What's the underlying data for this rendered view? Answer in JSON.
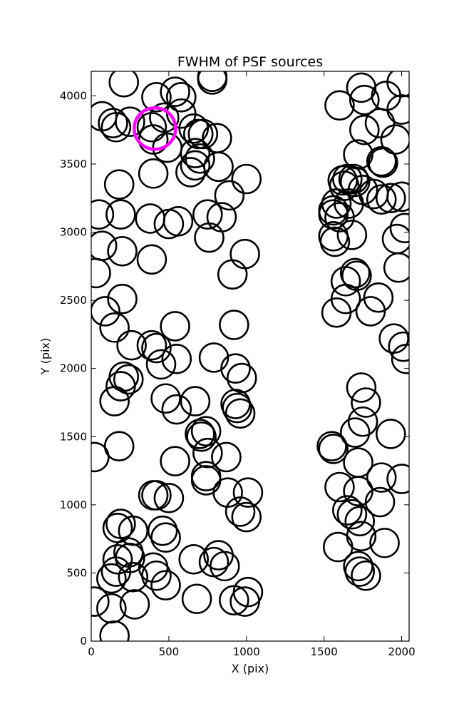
{
  "chart_data": {
    "type": "scatter",
    "title": "FWHM of PSF sources",
    "xlabel": "X (pix)",
    "ylabel": "Y (pix)",
    "xlim": [
      0,
      2048
    ],
    "ylim": [
      0,
      4180
    ],
    "x_ticks": [
      0,
      500,
      1000,
      1500,
      2000
    ],
    "y_ticks": [
      0,
      500,
      1000,
      1500,
      2000,
      2500,
      3000,
      3500,
      4000
    ],
    "grid": false,
    "marker": "open circle",
    "marker_color": "#000000",
    "highlight_color": "#ff00ff",
    "highlight": {
      "x": 410,
      "y": 3760
    },
    "points": [
      {
        "x": 210,
        "y": 4100
      },
      {
        "x": 420,
        "y": 3990
      },
      {
        "x": 540,
        "y": 4030
      },
      {
        "x": 580,
        "y": 3990
      },
      {
        "x": 780,
        "y": 4140
      },
      {
        "x": 780,
        "y": 4120
      },
      {
        "x": 70,
        "y": 3850
      },
      {
        "x": 140,
        "y": 3800
      },
      {
        "x": 160,
        "y": 3770
      },
      {
        "x": 250,
        "y": 3810
      },
      {
        "x": 390,
        "y": 3770
      },
      {
        "x": 470,
        "y": 3840
      },
      {
        "x": 580,
        "y": 3870
      },
      {
        "x": 660,
        "y": 3760
      },
      {
        "x": 690,
        "y": 3720
      },
      {
        "x": 720,
        "y": 3720
      },
      {
        "x": 810,
        "y": 3690
      },
      {
        "x": 400,
        "y": 3680
      },
      {
        "x": 490,
        "y": 3620
      },
      {
        "x": 670,
        "y": 3580
      },
      {
        "x": 700,
        "y": 3540
      },
      {
        "x": 670,
        "y": 3490
      },
      {
        "x": 640,
        "y": 3440
      },
      {
        "x": 820,
        "y": 3480
      },
      {
        "x": 400,
        "y": 3430
      },
      {
        "x": 180,
        "y": 3350
      },
      {
        "x": 1000,
        "y": 3390
      },
      {
        "x": 890,
        "y": 3270
      },
      {
        "x": 50,
        "y": 3130
      },
      {
        "x": 190,
        "y": 3130
      },
      {
        "x": 380,
        "y": 3100
      },
      {
        "x": 500,
        "y": 3060
      },
      {
        "x": 560,
        "y": 3080
      },
      {
        "x": 750,
        "y": 3130
      },
      {
        "x": 840,
        "y": 3110
      },
      {
        "x": 760,
        "y": 2960
      },
      {
        "x": 70,
        "y": 2900
      },
      {
        "x": 200,
        "y": 2860
      },
      {
        "x": 390,
        "y": 2800
      },
      {
        "x": 990,
        "y": 2840
      },
      {
        "x": 30,
        "y": 2700
      },
      {
        "x": 910,
        "y": 2690
      },
      {
        "x": 200,
        "y": 2510
      },
      {
        "x": 90,
        "y": 2420
      },
      {
        "x": 150,
        "y": 2300
      },
      {
        "x": 540,
        "y": 2310
      },
      {
        "x": 920,
        "y": 2320
      },
      {
        "x": 260,
        "y": 2170
      },
      {
        "x": 390,
        "y": 2170
      },
      {
        "x": 420,
        "y": 2150
      },
      {
        "x": 450,
        "y": 2030
      },
      {
        "x": 550,
        "y": 2070
      },
      {
        "x": 790,
        "y": 2080
      },
      {
        "x": 930,
        "y": 2000
      },
      {
        "x": 970,
        "y": 1930
      },
      {
        "x": 210,
        "y": 1940
      },
      {
        "x": 240,
        "y": 1920
      },
      {
        "x": 190,
        "y": 1870
      },
      {
        "x": 150,
        "y": 1760
      },
      {
        "x": 480,
        "y": 1780
      },
      {
        "x": 550,
        "y": 1700
      },
      {
        "x": 670,
        "y": 1760
      },
      {
        "x": 930,
        "y": 1740
      },
      {
        "x": 940,
        "y": 1710
      },
      {
        "x": 960,
        "y": 1670
      },
      {
        "x": 740,
        "y": 1540
      },
      {
        "x": 700,
        "y": 1520
      },
      {
        "x": 710,
        "y": 1500
      },
      {
        "x": 750,
        "y": 1380
      },
      {
        "x": 870,
        "y": 1350
      },
      {
        "x": 180,
        "y": 1430
      },
      {
        "x": 20,
        "y": 1350
      },
      {
        "x": 540,
        "y": 1320
      },
      {
        "x": 740,
        "y": 1210
      },
      {
        "x": 740,
        "y": 1180
      },
      {
        "x": 880,
        "y": 1090
      },
      {
        "x": 1010,
        "y": 1090
      },
      {
        "x": 400,
        "y": 1070
      },
      {
        "x": 420,
        "y": 1070
      },
      {
        "x": 500,
        "y": 1050
      },
      {
        "x": 960,
        "y": 950
      },
      {
        "x": 1000,
        "y": 910
      },
      {
        "x": 190,
        "y": 860
      },
      {
        "x": 170,
        "y": 830
      },
      {
        "x": 270,
        "y": 810
      },
      {
        "x": 460,
        "y": 810
      },
      {
        "x": 480,
        "y": 760
      },
      {
        "x": 240,
        "y": 650
      },
      {
        "x": 250,
        "y": 610
      },
      {
        "x": 170,
        "y": 600
      },
      {
        "x": 660,
        "y": 600
      },
      {
        "x": 790,
        "y": 580
      },
      {
        "x": 820,
        "y": 630
      },
      {
        "x": 860,
        "y": 550
      },
      {
        "x": 160,
        "y": 510
      },
      {
        "x": 130,
        "y": 460
      },
      {
        "x": 270,
        "y": 470
      },
      {
        "x": 400,
        "y": 540
      },
      {
        "x": 420,
        "y": 480
      },
      {
        "x": 480,
        "y": 410
      },
      {
        "x": 20,
        "y": 290
      },
      {
        "x": 130,
        "y": 240
      },
      {
        "x": 280,
        "y": 270
      },
      {
        "x": 680,
        "y": 310
      },
      {
        "x": 920,
        "y": 300
      },
      {
        "x": 990,
        "y": 290
      },
      {
        "x": 1010,
        "y": 360
      },
      {
        "x": 150,
        "y": 40
      },
      {
        "x": 1600,
        "y": 3930
      },
      {
        "x": 1740,
        "y": 4060
      },
      {
        "x": 1760,
        "y": 3970
      },
      {
        "x": 1900,
        "y": 4000
      },
      {
        "x": 2000,
        "y": 4100
      },
      {
        "x": 2000,
        "y": 3900
      },
      {
        "x": 1860,
        "y": 3800
      },
      {
        "x": 1760,
        "y": 3750
      },
      {
        "x": 1960,
        "y": 3680
      },
      {
        "x": 1720,
        "y": 3570
      },
      {
        "x": 1880,
        "y": 3510
      },
      {
        "x": 1870,
        "y": 3520
      },
      {
        "x": 1620,
        "y": 3380
      },
      {
        "x": 1650,
        "y": 3390
      },
      {
        "x": 1690,
        "y": 3390
      },
      {
        "x": 1700,
        "y": 3370
      },
      {
        "x": 1630,
        "y": 3340
      },
      {
        "x": 1750,
        "y": 3310
      },
      {
        "x": 1820,
        "y": 3280
      },
      {
        "x": 1870,
        "y": 3240
      },
      {
        "x": 1930,
        "y": 3250
      },
      {
        "x": 2000,
        "y": 3260
      },
      {
        "x": 1580,
        "y": 3210
      },
      {
        "x": 1660,
        "y": 3210
      },
      {
        "x": 1560,
        "y": 3160
      },
      {
        "x": 1560,
        "y": 3130
      },
      {
        "x": 1600,
        "y": 3110
      },
      {
        "x": 2020,
        "y": 3030
      },
      {
        "x": 1560,
        "y": 2970
      },
      {
        "x": 1570,
        "y": 2930
      },
      {
        "x": 1680,
        "y": 2980
      },
      {
        "x": 1970,
        "y": 2950
      },
      {
        "x": 1980,
        "y": 2740
      },
      {
        "x": 1700,
        "y": 2700
      },
      {
        "x": 1710,
        "y": 2680
      },
      {
        "x": 1640,
        "y": 2640
      },
      {
        "x": 1850,
        "y": 2520
      },
      {
        "x": 1640,
        "y": 2510
      },
      {
        "x": 1800,
        "y": 2420
      },
      {
        "x": 1580,
        "y": 2410
      },
      {
        "x": 1950,
        "y": 2220
      },
      {
        "x": 2010,
        "y": 2160
      },
      {
        "x": 2030,
        "y": 2070
      },
      {
        "x": 1740,
        "y": 1860
      },
      {
        "x": 1770,
        "y": 1750
      },
      {
        "x": 1750,
        "y": 1610
      },
      {
        "x": 1700,
        "y": 1530
      },
      {
        "x": 1550,
        "y": 1430
      },
      {
        "x": 1560,
        "y": 1410
      },
      {
        "x": 1930,
        "y": 1520
      },
      {
        "x": 1720,
        "y": 1310
      },
      {
        "x": 1870,
        "y": 1200
      },
      {
        "x": 2000,
        "y": 1190
      },
      {
        "x": 1600,
        "y": 1130
      },
      {
        "x": 1720,
        "y": 1100
      },
      {
        "x": 1650,
        "y": 960
      },
      {
        "x": 1680,
        "y": 930
      },
      {
        "x": 1860,
        "y": 1020
      },
      {
        "x": 1730,
        "y": 880
      },
      {
        "x": 1740,
        "y": 770
      },
      {
        "x": 1890,
        "y": 720
      },
      {
        "x": 1590,
        "y": 690
      },
      {
        "x": 1720,
        "y": 550
      },
      {
        "x": 1730,
        "y": 510
      },
      {
        "x": 1770,
        "y": 480
      }
    ]
  }
}
